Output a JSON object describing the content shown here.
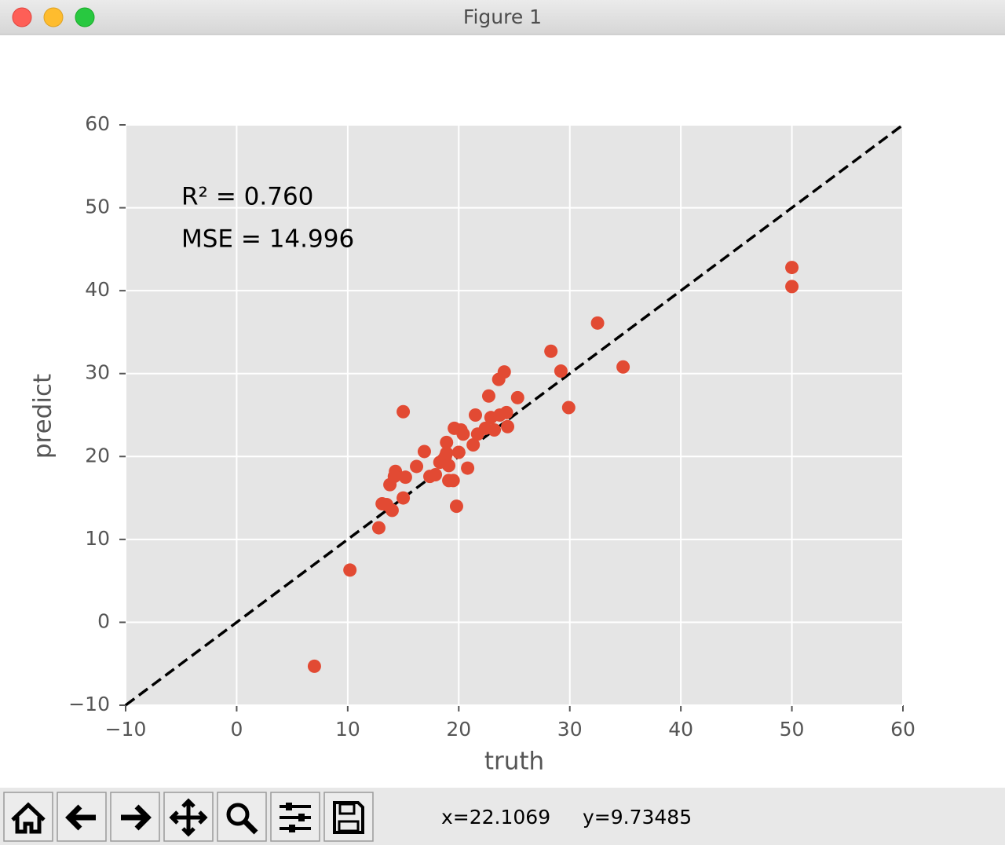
{
  "window": {
    "title": "Figure 1"
  },
  "chart_data": {
    "type": "scatter",
    "annotations": [
      "R² = 0.760",
      "MSE = 14.996"
    ],
    "x_label": "truth",
    "y_label": "predict",
    "color": "#E24A33",
    "grid": true,
    "identity_line": true,
    "xlim": [
      -10,
      60
    ],
    "ylim": [
      -10,
      60
    ],
    "xticks": [
      {
        "value": -10,
        "label": "−10"
      },
      0,
      10,
      20,
      30,
      40,
      50,
      60
    ],
    "yticks": [
      {
        "value": -10,
        "label": "−10"
      },
      0,
      10,
      20,
      30,
      40,
      50,
      60
    ],
    "x": [
      7.0,
      10.2,
      12.8,
      13.1,
      13.5,
      14.0,
      13.8,
      14.3,
      14.2,
      15.0,
      15.0,
      15.2,
      16.2,
      16.9,
      17.4,
      17.9,
      18.3,
      18.6,
      18.8,
      18.9,
      18.9,
      19.1,
      19.5,
      19.1,
      19.6,
      19.8,
      20.0,
      20.2,
      20.4,
      20.8,
      21.3,
      21.5,
      21.7,
      22.4,
      22.7,
      22.9,
      23.2,
      23.6,
      23.7,
      24.1,
      24.3,
      24.4,
      25.3,
      28.3,
      29.2,
      29.9,
      32.5,
      34.8,
      50.0,
      50.0
    ],
    "y": [
      -5.3,
      6.3,
      11.4,
      14.3,
      14.2,
      13.5,
      16.6,
      18.2,
      17.6,
      15.0,
      25.4,
      17.5,
      18.8,
      20.6,
      17.6,
      17.8,
      19.3,
      19.6,
      20.0,
      21.7,
      20.4,
      17.1,
      17.1,
      18.9,
      23.4,
      14.0,
      20.5,
      23.2,
      22.7,
      18.6,
      21.4,
      25.0,
      22.7,
      23.4,
      27.3,
      24.7,
      23.2,
      29.3,
      25.0,
      30.2,
      25.3,
      23.6,
      27.1,
      32.7,
      30.3,
      25.9,
      36.1,
      30.8,
      42.8,
      40.5
    ]
  },
  "status": {
    "x": "x=22.1069",
    "y": "y=9.73485"
  }
}
